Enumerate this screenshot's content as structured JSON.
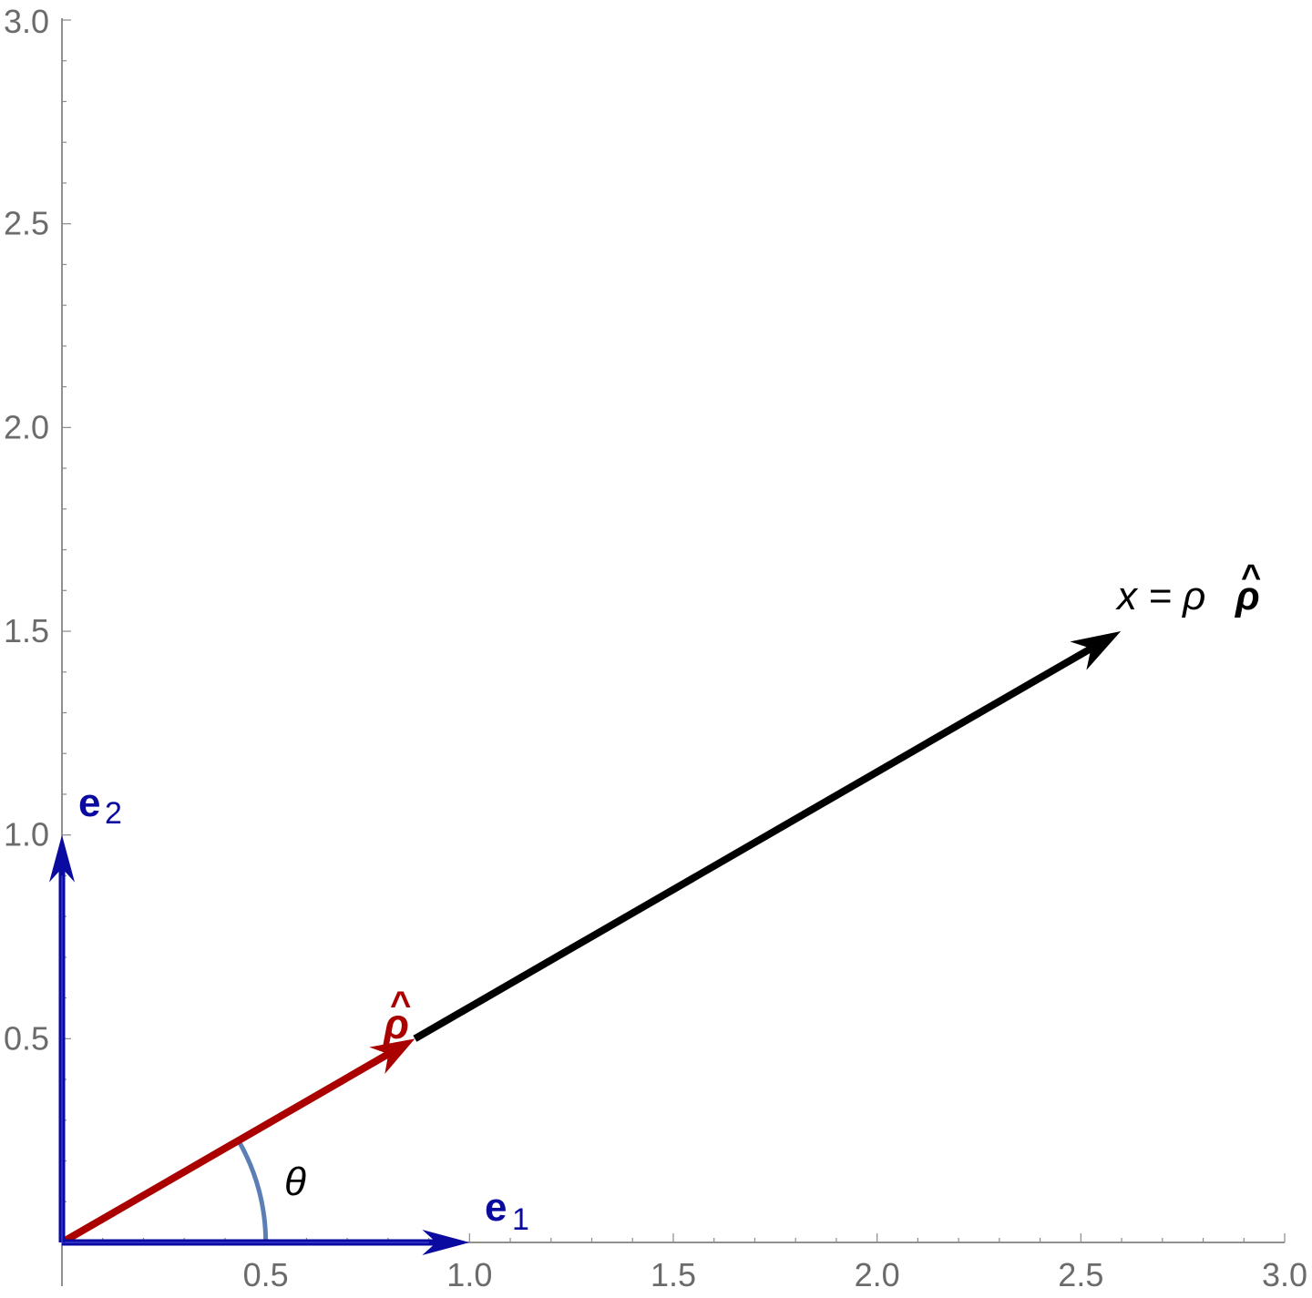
{
  "chart_data": {
    "type": "diagram",
    "xlim": [
      0,
      3
    ],
    "ylim": [
      0,
      3
    ],
    "x_ticks": [
      "0.5",
      "1.0",
      "1.5",
      "2.0",
      "2.5",
      "3.0"
    ],
    "y_ticks": [
      "0.5",
      "1.0",
      "1.5",
      "2.0",
      "2.5",
      "3.0"
    ],
    "vectors": [
      {
        "id": "e1",
        "from": [
          0,
          0
        ],
        "to": [
          1,
          0
        ],
        "color": "#0a0aa0",
        "label_main": "e",
        "label_sub": "1"
      },
      {
        "id": "e2",
        "from": [
          0,
          0
        ],
        "to": [
          0,
          1
        ],
        "color": "#0a0aa0",
        "label_main": "e",
        "label_sub": "2"
      },
      {
        "id": "rho_hat",
        "from": [
          0,
          0
        ],
        "to": [
          0.866,
          0.5
        ],
        "color": "#aa0000",
        "label_main": "ρ",
        "label_hat": "^"
      },
      {
        "id": "x",
        "from": [
          0.866,
          0.5
        ],
        "to": [
          2.598,
          1.5
        ],
        "color": "#000000",
        "label_main": "x = ρ",
        "label_tail": "ρ",
        "label_hat": "^"
      }
    ],
    "angle": {
      "label": "θ",
      "radius": 0.5,
      "degrees": 30,
      "color": "#5b7fb5"
    }
  }
}
